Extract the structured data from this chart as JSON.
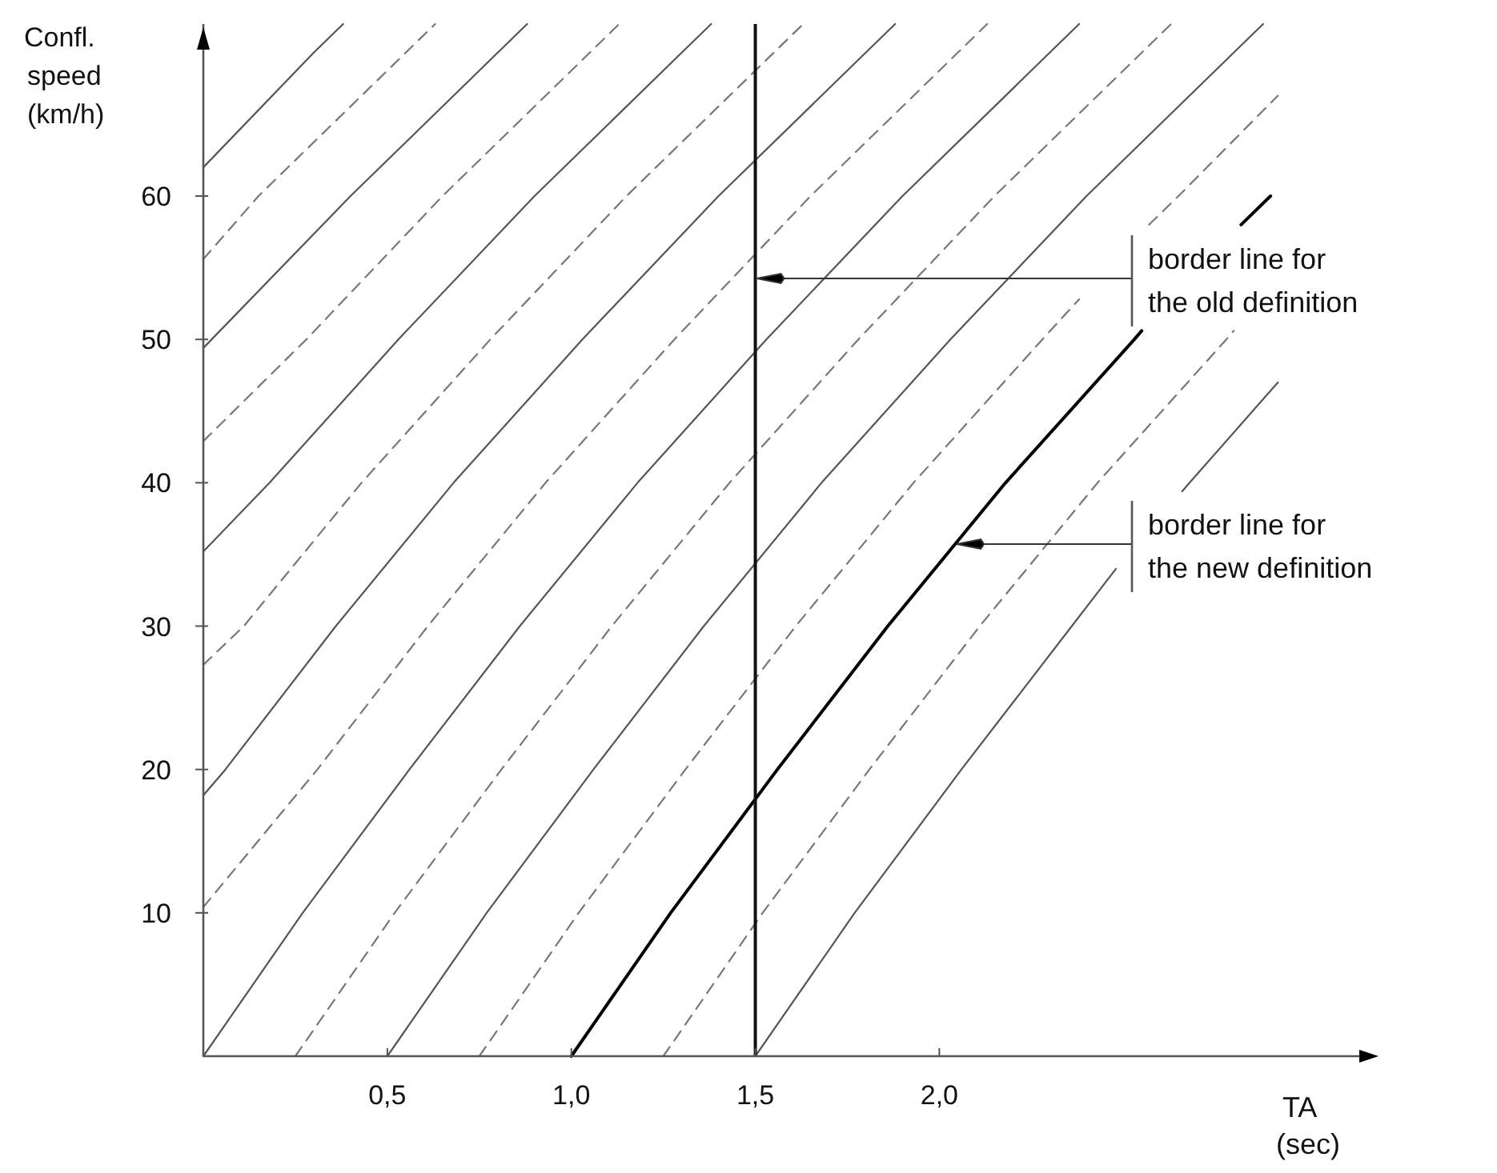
{
  "chart_data": {
    "type": "line",
    "xlabel": "TA (sec)",
    "ylabel": "Confl. speed (km/h)",
    "xlim": [
      0,
      3.15
    ],
    "ylim": [
      0,
      72
    ],
    "xticks": [
      {
        "value": 0.5,
        "label": "0,5"
      },
      {
        "value": 1.0,
        "label": "1,0"
      },
      {
        "value": 1.5,
        "label": "1,5"
      },
      {
        "value": 2.0,
        "label": "2,0"
      }
    ],
    "yticks": [
      10,
      20,
      30,
      40,
      50,
      60
    ],
    "grid": false,
    "marker": "none",
    "ref_lines": [
      {
        "axis": "x",
        "value": 1.5,
        "color": "#111111"
      }
    ],
    "annotations": [
      "border line for the old definition",
      "border line for the new definition"
    ],
    "series": [
      {
        "color": "#555555",
        "line_style": "solid",
        "x": [
          0,
          0.3,
          0.38
        ],
        "values": [
          62,
          70,
          72
        ]
      },
      {
        "color": "#777777",
        "line_style": "dashed",
        "x": [
          0,
          0.15,
          0.55,
          0.63
        ],
        "values": [
          55.6,
          60,
          70,
          72
        ]
      },
      {
        "color": "#555555",
        "line_style": "solid",
        "x": [
          0,
          0.4,
          0.8,
          0.88
        ],
        "values": [
          49.4,
          60,
          70,
          72
        ]
      },
      {
        "color": "#777777",
        "line_style": "dashed",
        "x": [
          0,
          0.28,
          0.65,
          1.05,
          1.13
        ],
        "values": [
          42.9,
          50,
          60,
          70,
          72
        ]
      },
      {
        "color": "#555555",
        "line_style": "solid",
        "x": [
          0,
          0.18,
          0.53,
          0.9,
          1.3,
          1.38
        ],
        "values": [
          35.2,
          40,
          50,
          60,
          70,
          72
        ]
      },
      {
        "color": "#777777",
        "line_style": "dashed",
        "x": [
          0,
          0.11,
          0.43,
          0.78,
          1.15,
          1.55,
          1.63
        ],
        "values": [
          27.3,
          30,
          40,
          50,
          60,
          70,
          72
        ]
      },
      {
        "color": "#555555",
        "line_style": "solid",
        "x": [
          0,
          0.06,
          0.36,
          0.68,
          1.03,
          1.4,
          1.8,
          1.88
        ],
        "values": [
          18.2,
          20,
          30,
          40,
          50,
          60,
          70,
          72
        ]
      },
      {
        "color": "#777777",
        "line_style": "dashed",
        "x": [
          0,
          0.31,
          0.61,
          0.93,
          1.28,
          1.65,
          2.05,
          2.13
        ],
        "values": [
          10.4,
          20,
          30,
          40,
          50,
          60,
          70,
          72
        ]
      },
      {
        "color": "#555555",
        "line_style": "solid",
        "x": [
          0,
          0.27,
          0.56,
          0.86,
          1.18,
          1.53,
          1.9,
          2.3,
          2.38
        ],
        "values": [
          0,
          10,
          20,
          30,
          40,
          50,
          60,
          70,
          72
        ]
      },
      {
        "color": "#777777",
        "line_style": "dashed",
        "x": [
          0.25,
          0.52,
          0.81,
          1.11,
          1.43,
          1.78,
          2.15,
          2.55,
          2.63
        ],
        "values": [
          0,
          10,
          20,
          30,
          40,
          50,
          60,
          70,
          72
        ]
      },
      {
        "color": "#555555",
        "line_style": "solid",
        "x": [
          0.5,
          0.77,
          1.06,
          1.36,
          1.68,
          2.03,
          2.4,
          2.8,
          2.88
        ],
        "values": [
          0,
          10,
          20,
          30,
          40,
          50,
          60,
          70,
          72
        ]
      },
      {
        "color": "#777777",
        "line_style": "dashed",
        "x": [
          0.75,
          1.02,
          1.31,
          1.61,
          1.93,
          2.28,
          2.38,
          2.48,
          2.57,
          2.65,
          2.92
        ],
        "values": [
          0,
          10,
          20,
          30,
          40,
          50,
          52.8,
          null,
          58,
          60,
          67
        ]
      },
      {
        "color": "#000000",
        "line_style": "solid",
        "x": [
          1.0,
          1.27,
          1.56,
          1.86,
          2.18,
          2.53,
          2.55,
          2.7,
          2.82,
          2.9
        ],
        "values": [
          0,
          10,
          20,
          30,
          40,
          50,
          50.6,
          null,
          58,
          60
        ]
      },
      {
        "color": "#777777",
        "line_style": "dashed",
        "x": [
          1.25,
          1.52,
          1.81,
          2.11,
          2.43,
          2.78,
          2.8
        ],
        "values": [
          0,
          10,
          20,
          30,
          40,
          50,
          50.6
        ]
      },
      {
        "color": "#555555",
        "line_style": "solid",
        "x": [
          1.5,
          1.77,
          2.06,
          2.36,
          2.48,
          2.57,
          2.66,
          2.68,
          2.92
        ],
        "values": [
          0,
          10,
          20,
          30,
          34,
          null,
          39.4,
          40,
          47
        ]
      }
    ]
  }
}
